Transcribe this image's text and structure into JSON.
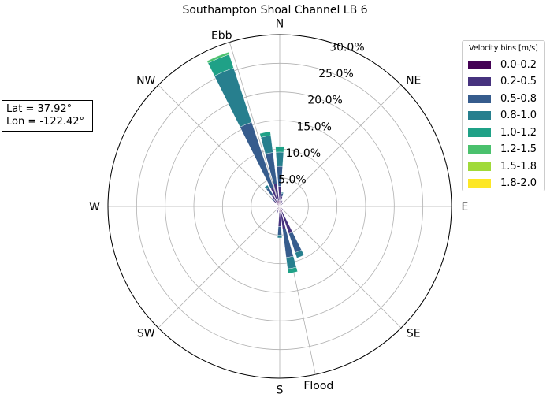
{
  "chart_data": {
    "type": "windrose",
    "title": "Southampton Shoal Channel LB 6",
    "directions": [
      "N",
      "NE",
      "E",
      "SE",
      "S",
      "SW",
      "W",
      "NW"
    ],
    "radial_ticks": [
      "5.0%",
      "10.0%",
      "15.0%",
      "20.0%",
      "25.0%",
      "30.0%"
    ],
    "radial_max": 30,
    "annotations": {
      "ebb": "Ebb",
      "flood": "Flood",
      "ebb_dir_deg": -17,
      "flood_dir_deg": 168
    },
    "legend_title": "Velocity bins [m/s]",
    "bins": [
      "0.0-0.2",
      "0.2-0.5",
      "0.5-0.8",
      "0.8-1.0",
      "1.0-1.2",
      "1.2-1.5",
      "1.5-1.8",
      "1.8-2.0"
    ],
    "colors": [
      "#440154",
      "#46327e",
      "#365c8d",
      "#277f8e",
      "#1fa187",
      "#4ac16d",
      "#a0da39",
      "#fde725"
    ],
    "sectors": [
      {
        "dir": 0,
        "values": [
          1.0,
          2.5,
          3.5,
          2.5,
          1.0,
          0,
          0,
          0
        ]
      },
      {
        "dir": 11.25,
        "values": [
          0.6,
          1.2,
          0.5,
          0.2,
          0,
          0,
          0,
          0
        ]
      },
      {
        "dir": -11.25,
        "values": [
          1.0,
          3.0,
          5.5,
          3.0,
          0.7,
          0,
          0,
          0
        ]
      },
      {
        "dir": -22.5,
        "values": [
          1.0,
          2.5,
          12.0,
          10.0,
          2.5,
          0.4,
          0,
          0
        ]
      },
      {
        "dir": -33.75,
        "values": [
          0.8,
          1.5,
          1.5,
          0.5,
          0,
          0,
          0,
          0
        ]
      },
      {
        "dir": -45,
        "values": [
          0.6,
          0.8,
          0.5,
          0,
          0,
          0,
          0,
          0
        ]
      },
      {
        "dir": 22.5,
        "values": [
          0.5,
          0.6,
          0,
          0,
          0,
          0,
          0,
          0
        ]
      },
      {
        "dir": 45,
        "values": [
          0.4,
          0.5,
          0,
          0,
          0,
          0,
          0,
          0
        ]
      },
      {
        "dir": 135,
        "values": [
          0.5,
          0.5,
          0,
          0,
          0,
          0,
          0,
          0
        ]
      },
      {
        "dir": 157.5,
        "values": [
          1.0,
          4.0,
          3.5,
          1.0,
          0,
          0,
          0,
          0
        ]
      },
      {
        "dir": 168.75,
        "values": [
          1.0,
          3.0,
          5.0,
          2.0,
          0.8,
          0,
          0,
          0
        ]
      },
      {
        "dir": 180,
        "values": [
          1.0,
          2.5,
          1.5,
          0.5,
          0,
          0,
          0,
          0
        ]
      },
      {
        "dir": 202.5,
        "values": [
          0.6,
          0.7,
          0,
          0,
          0,
          0,
          0,
          0
        ]
      },
      {
        "dir": 225,
        "values": [
          0.5,
          0.5,
          0,
          0,
          0,
          0,
          0,
          0
        ]
      },
      {
        "dir": 270,
        "values": [
          0.3,
          0.3,
          0,
          0,
          0,
          0,
          0,
          0
        ]
      },
      {
        "dir": 90,
        "values": [
          0.3,
          0.3,
          0,
          0,
          0,
          0,
          0,
          0
        ]
      }
    ]
  },
  "info": {
    "lat": "Lat = 37.92°",
    "lon": "Lon = -122.42°"
  }
}
